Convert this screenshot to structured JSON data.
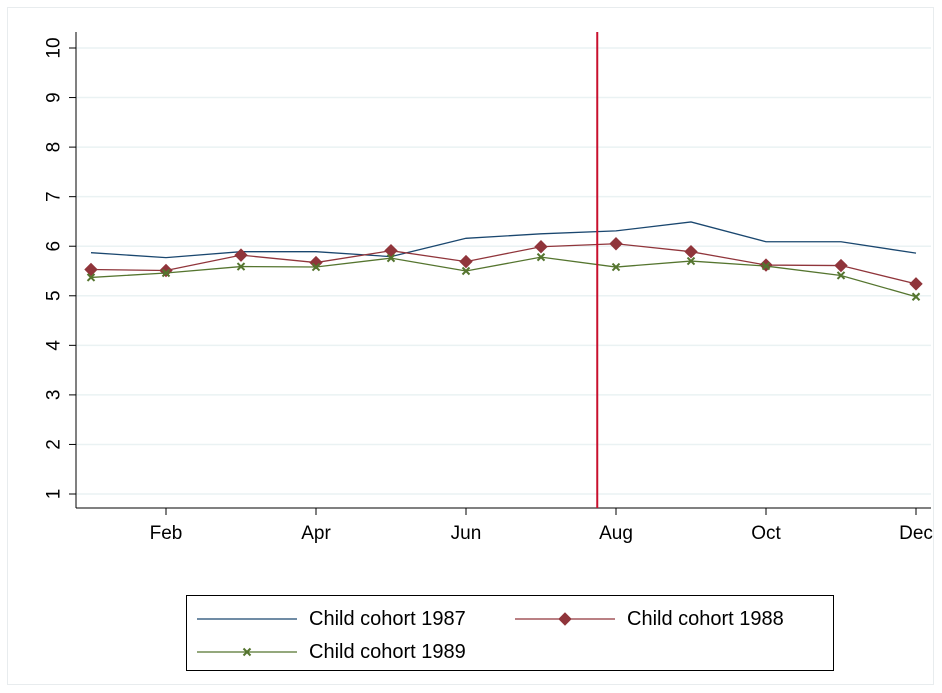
{
  "chart_data": {
    "type": "line",
    "title": "",
    "xlabel": "",
    "ylabel": "",
    "x": [
      1,
      2,
      3,
      4,
      5,
      6,
      7,
      8,
      9,
      10,
      11,
      12
    ],
    "x_tick_values": [
      2,
      4,
      6,
      8,
      10,
      12
    ],
    "x_tick_labels": [
      "Feb",
      "Apr",
      "Jun",
      "Aug",
      "Oct",
      "Dec"
    ],
    "xlim": [
      0.8,
      12.2
    ],
    "y_ticks": [
      "1",
      "2",
      "3",
      "4",
      "5",
      "6",
      "7",
      "8",
      "9",
      "10"
    ],
    "ylim": [
      1,
      10
    ],
    "grid": "horizontal",
    "legend_position": "bottom",
    "vertical_line": {
      "x": 7.75,
      "color": "#c8102e"
    },
    "series": [
      {
        "name": "Child cohort 1987",
        "color": "#1a476f",
        "marker": "none",
        "values": [
          5.87,
          5.77,
          5.89,
          5.89,
          5.79,
          6.16,
          6.25,
          6.31,
          6.49,
          6.09,
          6.09,
          5.86
        ]
      },
      {
        "name": "Child cohort 1988",
        "color": "#90353b",
        "marker": "diamond",
        "values": [
          5.53,
          5.51,
          5.82,
          5.67,
          5.91,
          5.69,
          5.99,
          6.05,
          5.89,
          5.62,
          5.61,
          5.24
        ]
      },
      {
        "name": "Child cohort 1989",
        "color": "#55752f",
        "marker": "x",
        "values": [
          5.37,
          5.46,
          5.59,
          5.58,
          5.76,
          5.5,
          5.78,
          5.58,
          5.7,
          5.6,
          5.41,
          4.98
        ]
      }
    ]
  }
}
